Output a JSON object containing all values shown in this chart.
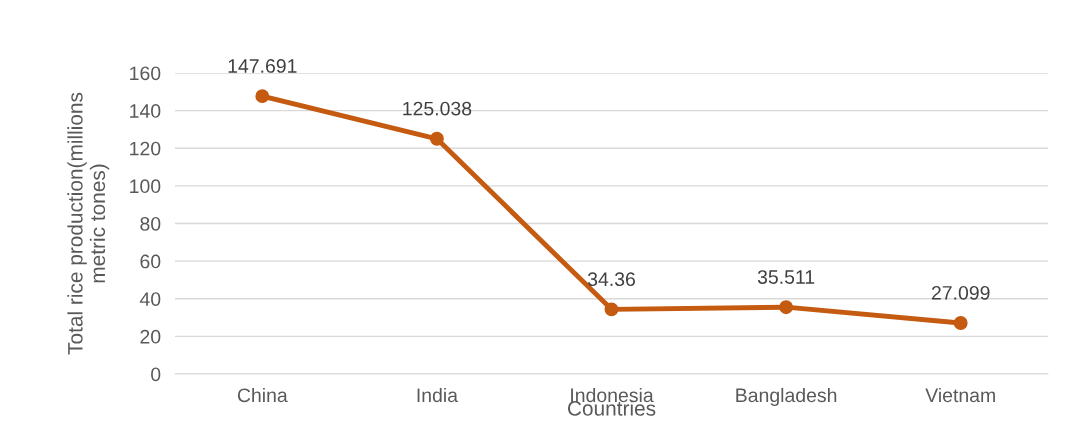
{
  "chart_data": {
    "type": "line",
    "xlabel": "Countries",
    "ylabel": "Total rice production(millions\nmetric tones)",
    "categories": [
      "China",
      "India",
      "Indonesia",
      "Bangladesh",
      "Vietnam"
    ],
    "series": [
      {
        "color": "#c55a11",
        "values": [
          147.691,
          125.038,
          34.36,
          35.511,
          27.099
        ]
      }
    ],
    "ylim": [
      0,
      160
    ],
    "yticks": [
      0,
      20,
      40,
      60,
      80,
      100,
      120,
      140,
      160
    ],
    "grid": "y",
    "marker": "circle",
    "line_style": "solid",
    "data_labels": true
  }
}
